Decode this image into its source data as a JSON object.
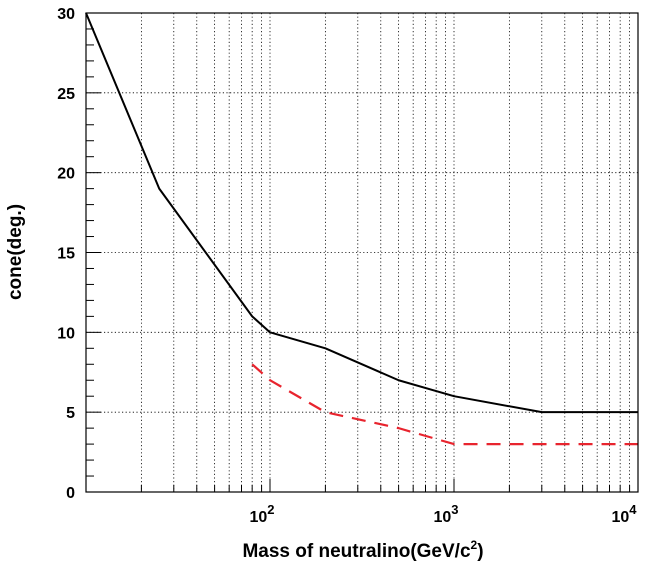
{
  "chart_data": {
    "type": "line",
    "title": "",
    "xlabel": "Mass of neutralino(GeV/c",
    "xlabel_superscript": "2",
    "xlabel_suffix": ")",
    "ylabel": "cone(deg.)",
    "x_scale": "log",
    "xlim": [
      10,
      10000
    ],
    "ylim": [
      0,
      30
    ],
    "x_tick_labels": [
      {
        "value": 100,
        "base": "10",
        "exp": "2"
      },
      {
        "value": 1000,
        "base": "10",
        "exp": "3"
      },
      {
        "value": 10000,
        "base": "10",
        "exp": "4"
      }
    ],
    "y_ticks": [
      0,
      5,
      10,
      15,
      20,
      25,
      30
    ],
    "grid": true,
    "legend": "none",
    "series": [
      {
        "style": "solid",
        "color": "#000000",
        "x": [
          10,
          25,
          80,
          100,
          200,
          500,
          1000,
          3000,
          10000
        ],
        "y": [
          30,
          19,
          11,
          10,
          9,
          7,
          6,
          5,
          5
        ]
      },
      {
        "style": "dashed",
        "color": "#e8242e",
        "x": [
          80,
          100,
          200,
          500,
          1000,
          10000
        ],
        "y": [
          8,
          7,
          5,
          4,
          3,
          3
        ]
      }
    ]
  }
}
